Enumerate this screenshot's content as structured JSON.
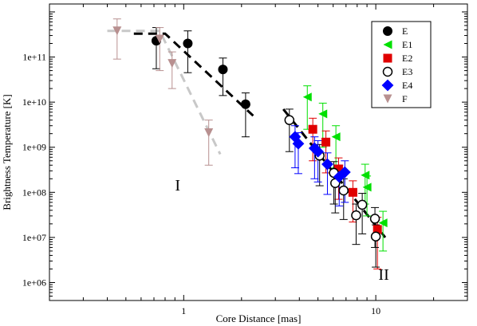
{
  "chart_data": {
    "type": "scatter",
    "xlabel": "Core Distance [mas]",
    "ylabel": "Brightness Temperature [K]",
    "xscale": "log",
    "yscale": "log",
    "xlim": [
      0.2,
      30
    ],
    "ylim": [
      400000,
      1500000000000
    ],
    "x_ticks": [
      1,
      10
    ],
    "x_tick_labels": [
      "1",
      "10"
    ],
    "y_ticks": [
      1000000,
      10000000,
      100000000,
      1000000000,
      10000000000,
      100000000000
    ],
    "y_tick_labels": [
      "1e+06",
      "1e+07",
      "1e+08",
      "1e+09",
      "1e+10",
      "1e+11"
    ],
    "legend_position": "top-right",
    "annotations": [
      {
        "text": "I",
        "x": 0.93,
        "y": 110000000
      },
      {
        "text": "II",
        "x": 11.0,
        "y": 1150000
      }
    ],
    "series": [
      {
        "name": "E",
        "marker": "circle-filled",
        "color": "#000000",
        "points": [
          {
            "x": 0.72,
            "y": 230000000000,
            "lo": 55000000000,
            "hi": 450000000000
          },
          {
            "x": 1.05,
            "y": 200000000000,
            "lo": 45000000000,
            "hi": 380000000000
          },
          {
            "x": 1.6,
            "y": 53000000000,
            "lo": 14000000000,
            "hi": 95000000000
          },
          {
            "x": 2.1,
            "y": 9000000000,
            "lo": 1700000000,
            "hi": 16000000000
          }
        ]
      },
      {
        "name": "E1",
        "marker": "triangle-left",
        "color": "#00e000",
        "points": [
          {
            "x": 4.4,
            "y": 13000000000,
            "lo": 2500000000,
            "hi": 23000000000
          },
          {
            "x": 5.3,
            "y": 5500000000,
            "lo": 1000000000,
            "hi": 9500000000
          },
          {
            "x": 6.2,
            "y": 1700000000,
            "lo": 350000000,
            "hi": 3000000000
          },
          {
            "x": 8.8,
            "y": 240000000,
            "lo": 55000000,
            "hi": 420000000
          },
          {
            "x": 9.0,
            "y": 130000000,
            "lo": 30000000,
            "hi": 230000000
          },
          {
            "x": 10.9,
            "y": 21000000,
            "lo": 5000000,
            "hi": 38000000
          }
        ]
      },
      {
        "name": "E2",
        "marker": "square-filled",
        "color": "#e00000",
        "points": [
          {
            "x": 4.7,
            "y": 2500000000,
            "lo": 500000000,
            "hi": 4400000000
          },
          {
            "x": 5.5,
            "y": 1300000000,
            "lo": 270000000,
            "hi": 2300000000
          },
          {
            "x": 6.4,
            "y": 330000000,
            "lo": 70000000,
            "hi": 580000000
          },
          {
            "x": 7.6,
            "y": 100000000,
            "lo": 22000000,
            "hi": 180000000
          },
          {
            "x": 10.2,
            "y": 15000000,
            "lo": 2000000,
            "hi": 28000000
          }
        ]
      },
      {
        "name": "E3",
        "marker": "circle-open",
        "color": "#000000",
        "points": [
          {
            "x": 3.55,
            "y": 4000000000,
            "lo": 800000000,
            "hi": 7000000000
          },
          {
            "x": 5.1,
            "y": 650000000,
            "lo": 140000000,
            "hi": 1150000000
          },
          {
            "x": 6.05,
            "y": 270000000,
            "lo": 55000000,
            "hi": 480000000
          },
          {
            "x": 6.15,
            "y": 160000000,
            "lo": 35000000,
            "hi": 290000000
          },
          {
            "x": 6.8,
            "y": 110000000,
            "lo": 25000000,
            "hi": 200000000
          },
          {
            "x": 7.9,
            "y": 31000000,
            "lo": 7000000,
            "hi": 55000000
          },
          {
            "x": 8.5,
            "y": 53000000,
            "lo": 12000000,
            "hi": 95000000
          },
          {
            "x": 9.9,
            "y": 26000000,
            "lo": 6000000,
            "hi": 46000000
          },
          {
            "x": 10.0,
            "y": 10500000,
            "lo": 2200000,
            "hi": 19000000
          }
        ]
      },
      {
        "name": "E4",
        "marker": "diamond-filled",
        "color": "#0000ff",
        "points": [
          {
            "x": 3.8,
            "y": 1700000000,
            "lo": 350000000,
            "hi": 3000000000
          },
          {
            "x": 3.95,
            "y": 1200000000,
            "lo": 260000000,
            "hi": 2100000000
          },
          {
            "x": 4.8,
            "y": 950000000,
            "lo": 200000000,
            "hi": 1700000000
          },
          {
            "x": 5.0,
            "y": 800000000,
            "lo": 170000000,
            "hi": 1400000000
          },
          {
            "x": 5.6,
            "y": 420000000,
            "lo": 90000000,
            "hi": 750000000
          },
          {
            "x": 6.45,
            "y": 220000000,
            "lo": 50000000,
            "hi": 400000000
          },
          {
            "x": 6.9,
            "y": 280000000,
            "lo": 60000000,
            "hi": 500000000
          }
        ]
      },
      {
        "name": "F",
        "marker": "triangle-down",
        "color": "#b89090",
        "points": [
          {
            "x": 0.45,
            "y": 380000000000,
            "lo": 90000000000,
            "hi": 700000000000
          },
          {
            "x": 0.75,
            "y": 250000000000,
            "lo": 50000000000,
            "hi": 450000000000
          },
          {
            "x": 0.87,
            "y": 72000000000,
            "lo": 20000000000,
            "hi": 130000000000
          },
          {
            "x": 1.35,
            "y": 2100000000,
            "lo": 400000000,
            "hi": 4000000000
          }
        ]
      }
    ],
    "fit_lines": [
      {
        "color": "#000000",
        "points": [
          [
            0.55,
            330000000000
          ],
          [
            0.8,
            330000000000
          ],
          [
            2.3,
            5000000000
          ]
        ]
      },
      {
        "color": "#c8c8c8",
        "points": [
          [
            0.4,
            380000000000
          ],
          [
            0.75,
            380000000000
          ],
          [
            1.55,
            700000000
          ]
        ]
      },
      {
        "color": "#000000",
        "points": [
          [
            3.3,
            7000000000
          ],
          [
            11.2,
            10000000
          ]
        ]
      }
    ]
  }
}
